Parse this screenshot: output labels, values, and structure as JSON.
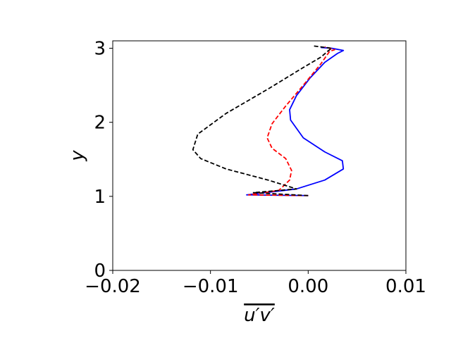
{
  "chart_data": {
    "type": "line",
    "xlabel": "u′v′",
    "ylabel": "y",
    "xlim": [
      -0.02,
      0.01
    ],
    "ylim": [
      0,
      3.1
    ],
    "xticks": [
      {
        "value": -0.02,
        "label": "−0.02"
      },
      {
        "value": -0.01,
        "label": "−0.01"
      },
      {
        "value": 0,
        "label": "0.00"
      },
      {
        "value": 0.01,
        "label": "0.01"
      }
    ],
    "yticks": [
      0,
      1,
      2,
      3
    ],
    "series": [
      {
        "color": "#0000ff",
        "dash": false,
        "x": [
          0,
          -0.0063,
          -0.0012,
          0.0017,
          0.0036,
          0.0035,
          0.0017,
          -0.0005,
          -0.0018,
          -0.0019,
          -0.0012,
          0.0002,
          0.0017,
          0.003,
          0.0036,
          0.0024,
          0.0013
        ],
        "y": [
          1.01,
          1.02,
          1.1,
          1.22,
          1.37,
          1.48,
          1.6,
          1.79,
          2.03,
          2.17,
          2.36,
          2.6,
          2.81,
          2.93,
          2.97,
          3.0,
          3.01
        ]
      },
      {
        "color": "#ff0000",
        "dash": true,
        "x": [
          0,
          -0.0061,
          -0.003,
          -0.0019,
          -0.0017,
          -0.0023,
          -0.0037,
          -0.0042,
          -0.0037,
          -0.0023,
          -0.0005,
          0.0013,
          0.0022,
          0.0027,
          0.0017
        ],
        "y": [
          1.01,
          1.02,
          1.08,
          1.22,
          1.35,
          1.51,
          1.65,
          1.79,
          1.98,
          2.22,
          2.5,
          2.79,
          2.96,
          2.98,
          3.02
        ]
      },
      {
        "color": "#000000",
        "dash": true,
        "x": [
          0,
          -0.0056,
          -0.0012,
          -0.0041,
          -0.0084,
          -0.011,
          -0.0118,
          -0.0113,
          -0.0084,
          -0.0041,
          -0.0005,
          0.0013,
          0.002,
          0.0024,
          0.0006
        ],
        "y": [
          1.01,
          1.05,
          1.1,
          1.22,
          1.37,
          1.51,
          1.63,
          1.84,
          2.12,
          2.45,
          2.74,
          2.88,
          2.96,
          3.0,
          3.03
        ]
      }
    ]
  }
}
